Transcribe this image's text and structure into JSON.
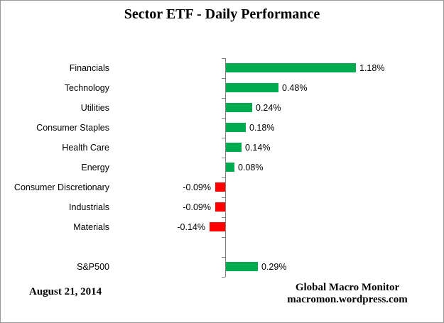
{
  "chart_data": {
    "type": "bar",
    "orientation": "horizontal",
    "title": "Sector ETF - Daily Performance",
    "categories": [
      "Financials",
      "Technology",
      "Utilities",
      "Consumer Staples",
      "Health Care",
      "Energy",
      "Consumer Discretionary",
      "Industrials",
      "Materials",
      "",
      "S&P500"
    ],
    "values": [
      1.18,
      0.48,
      0.24,
      0.18,
      0.14,
      0.08,
      -0.09,
      -0.09,
      -0.14,
      null,
      0.29
    ],
    "labels": [
      "1.18%",
      "0.48%",
      "0.24%",
      "0.18%",
      "0.14%",
      "0.08%",
      "-0.09%",
      "-0.09%",
      "-0.14%",
      "",
      "0.29%"
    ],
    "xlabel": "",
    "ylabel": "",
    "xlim": [
      -1.0,
      2.0
    ],
    "grid": false,
    "legend": false,
    "data_labels": "outside-end",
    "positive_color": "#00AB50",
    "negative_color": "#FF0000",
    "axis_color": "#808080"
  },
  "footer": {
    "date": "August 21, 2014",
    "attribution_line1": "Global Macro Monitor",
    "attribution_line2": "macromon.wordpress.com"
  }
}
